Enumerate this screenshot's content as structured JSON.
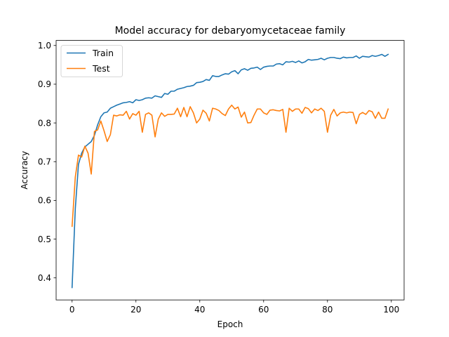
{
  "chart_data": {
    "type": "line",
    "title": "Model accuracy for debaryomycetaceae family",
    "xlabel": "Epoch",
    "ylabel": "Accuracy",
    "xlim": [
      -5,
      104
    ],
    "ylim": [
      0.343,
      1.013
    ],
    "xticks": [
      0,
      20,
      40,
      60,
      80,
      100
    ],
    "yticks": [
      0.4,
      0.5,
      0.6,
      0.7,
      0.8,
      0.9,
      1.0
    ],
    "ytick_labels": [
      "0.4",
      "0.5",
      "0.6",
      "0.7",
      "0.8",
      "0.9",
      "1.0"
    ],
    "grid": false,
    "legend": {
      "position": "upper-left"
    },
    "series": [
      {
        "name": "Train",
        "color": "#1f77b4",
        "values": [
          0.375,
          0.578,
          0.693,
          0.722,
          0.738,
          0.745,
          0.752,
          0.768,
          0.795,
          0.816,
          0.826,
          0.828,
          0.838,
          0.842,
          0.846,
          0.849,
          0.852,
          0.853,
          0.855,
          0.852,
          0.86,
          0.858,
          0.86,
          0.864,
          0.865,
          0.864,
          0.87,
          0.868,
          0.866,
          0.876,
          0.874,
          0.882,
          0.882,
          0.887,
          0.889,
          0.891,
          0.894,
          0.895,
          0.897,
          0.904,
          0.905,
          0.907,
          0.912,
          0.91,
          0.922,
          0.92,
          0.92,
          0.924,
          0.927,
          0.926,
          0.932,
          0.935,
          0.927,
          0.937,
          0.94,
          0.936,
          0.941,
          0.942,
          0.944,
          0.938,
          0.944,
          0.946,
          0.947,
          0.947,
          0.952,
          0.953,
          0.95,
          0.958,
          0.957,
          0.959,
          0.956,
          0.96,
          0.955,
          0.958,
          0.964,
          0.962,
          0.963,
          0.964,
          0.967,
          0.963,
          0.967,
          0.969,
          0.969,
          0.967,
          0.966,
          0.97,
          0.968,
          0.969,
          0.969,
          0.973,
          0.967,
          0.972,
          0.971,
          0.97,
          0.974,
          0.972,
          0.974,
          0.977,
          0.972,
          0.977
        ]
      },
      {
        "name": "Test",
        "color": "#ff7f0e",
        "values": [
          0.533,
          0.66,
          0.717,
          0.712,
          0.74,
          0.722,
          0.668,
          0.778,
          0.782,
          0.805,
          0.78,
          0.752,
          0.77,
          0.82,
          0.818,
          0.821,
          0.82,
          0.83,
          0.81,
          0.824,
          0.82,
          0.83,
          0.776,
          0.822,
          0.826,
          0.82,
          0.764,
          0.81,
          0.826,
          0.817,
          0.822,
          0.822,
          0.823,
          0.838,
          0.816,
          0.84,
          0.816,
          0.842,
          0.826,
          0.8,
          0.81,
          0.833,
          0.825,
          0.805,
          0.838,
          0.836,
          0.832,
          0.824,
          0.819,
          0.836,
          0.846,
          0.836,
          0.841,
          0.815,
          0.828,
          0.8,
          0.801,
          0.82,
          0.836,
          0.836,
          0.826,
          0.822,
          0.833,
          0.834,
          0.832,
          0.831,
          0.835,
          0.776,
          0.838,
          0.83,
          0.836,
          0.836,
          0.825,
          0.84,
          0.837,
          0.826,
          0.836,
          0.832,
          0.838,
          0.83,
          0.776,
          0.82,
          0.835,
          0.818,
          0.826,
          0.828,
          0.826,
          0.828,
          0.827,
          0.798,
          0.822,
          0.827,
          0.822,
          0.832,
          0.829,
          0.812,
          0.828,
          0.812,
          0.812,
          0.836
        ]
      }
    ]
  }
}
